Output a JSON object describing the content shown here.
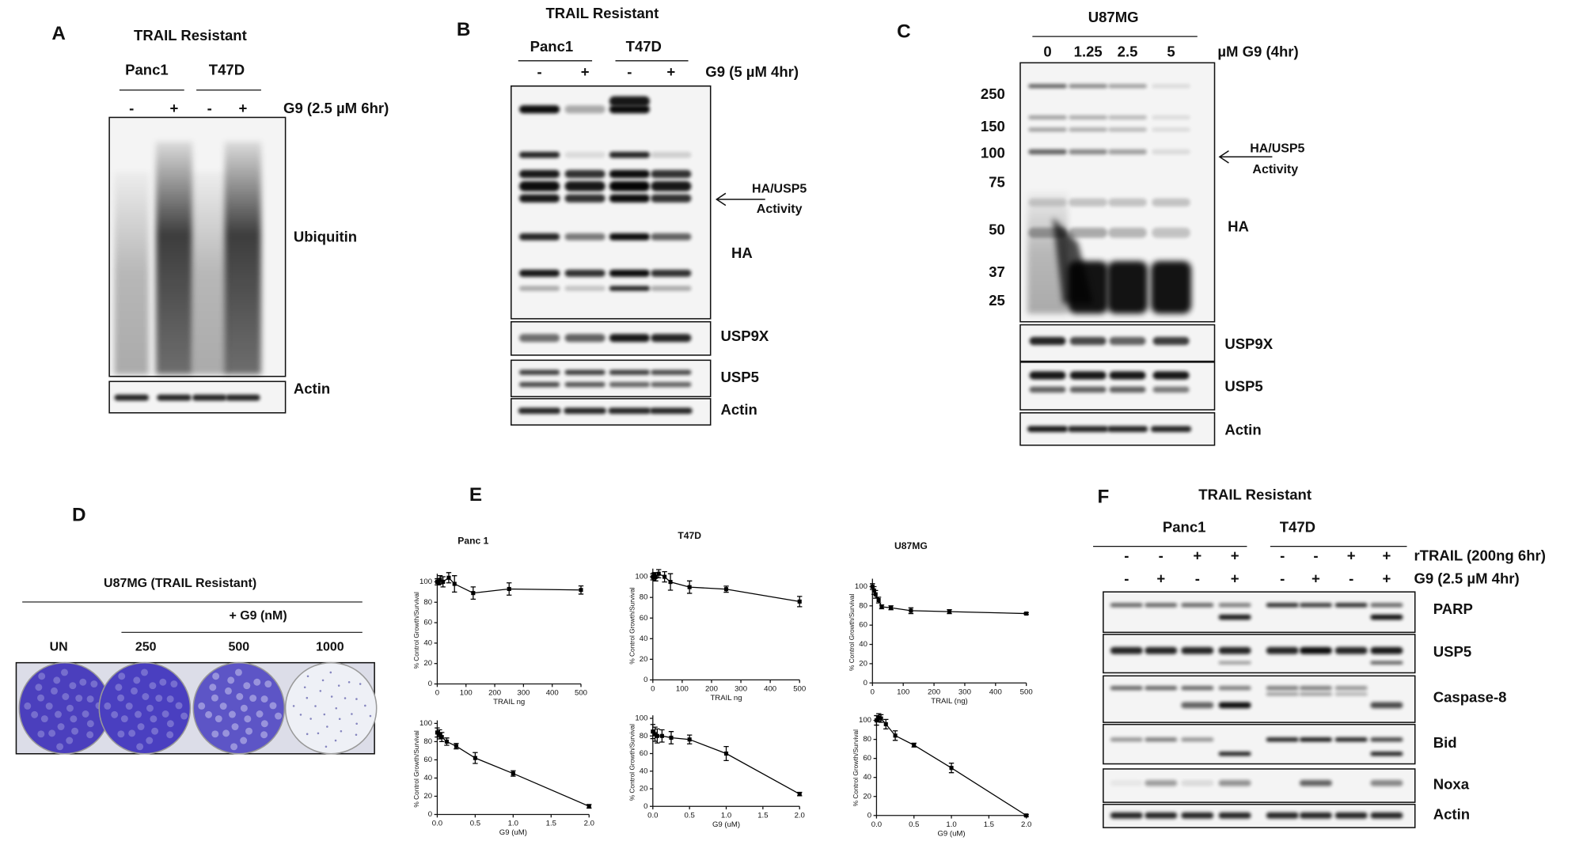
{
  "panels": {
    "A": {
      "label": "A",
      "header": "TRAIL Resistant",
      "groups": [
        "Panc1",
        "T47D"
      ],
      "lanes": [
        "-",
        "+",
        "-",
        "+"
      ],
      "treatment": "G9 (2.5 µM 6hr)",
      "blots": [
        "Ubiquitin",
        "Actin"
      ]
    },
    "B": {
      "label": "B",
      "header": "TRAIL Resistant",
      "groups": [
        "Panc1",
        "T47D"
      ],
      "lanes": [
        "-",
        "+",
        "-",
        "+"
      ],
      "treatment": "G9 (5 µM 4hr)",
      "annotation": [
        "HA/USP5",
        "Activity"
      ],
      "blots": [
        "HA",
        "USP9X",
        "USP5",
        "Actin"
      ]
    },
    "C": {
      "label": "C",
      "header": "U87MG",
      "lanes": [
        "0",
        "1.25",
        "2.5",
        "5"
      ],
      "treatment": "µM G9 (4hr)",
      "markers": [
        "250",
        "150",
        "100",
        "75",
        "50",
        "37",
        "25"
      ],
      "annotation": [
        "HA/USP5",
        "Activity"
      ],
      "blots": [
        "HA",
        "USP9X",
        "USP5",
        "Actin"
      ]
    },
    "D": {
      "label": "D",
      "title": "U87MG (TRAIL Resistant)",
      "subtitle": "+ G9 (nM)",
      "wells": [
        "UN",
        "250",
        "500",
        "1000"
      ]
    },
    "E": {
      "label": "E"
    },
    "F": {
      "label": "F",
      "header": "TRAIL Resistant",
      "groups": [
        "Panc1",
        "T47D"
      ],
      "rows": [
        {
          "name": "rTRAIL (200ng 6hr)",
          "signs": [
            "-",
            "-",
            "+",
            "+",
            "-",
            "-",
            "+",
            "+"
          ]
        },
        {
          "name": "G9 (2.5 µM 4hr)",
          "signs": [
            "-",
            "+",
            "-",
            "+",
            "-",
            "+",
            "-",
            "+"
          ]
        }
      ],
      "blots": [
        "PARP",
        "USP5",
        "Caspase-8",
        "Bid",
        "Noxa",
        "Actin"
      ]
    }
  },
  "chart_data": [
    {
      "type": "line",
      "title": "Panc 1",
      "x_label": "TRAIL ng",
      "y_label": "% Control Growth/Survival",
      "color": "#000000",
      "x": [
        0,
        5,
        10,
        20,
        40,
        60,
        125,
        250,
        500
      ],
      "values": [
        100,
        100,
        102,
        100,
        104,
        98,
        89,
        93,
        92
      ],
      "errors": [
        3,
        3,
        4,
        5,
        5,
        8,
        6,
        6,
        4
      ],
      "xlim": [
        0,
        500
      ],
      "xticks": [
        0,
        100,
        200,
        300,
        400,
        500
      ],
      "ylim": [
        0,
        105
      ],
      "yticks": [
        0,
        20,
        40,
        60,
        80,
        100
      ]
    },
    {
      "type": "line",
      "title": "T47D",
      "x_label": "TRAIL ng",
      "y_label": "% Control Growth/Survival",
      "color": "#000000",
      "x": [
        0,
        5,
        10,
        20,
        40,
        60,
        125,
        250,
        500
      ],
      "values": [
        100,
        101,
        100,
        103,
        100,
        95,
        90,
        88,
        76
      ],
      "errors": [
        3,
        3,
        4,
        4,
        5,
        8,
        6,
        3,
        5
      ],
      "xlim": [
        0,
        500
      ],
      "xticks": [
        0,
        100,
        200,
        300,
        400,
        500
      ],
      "ylim": [
        0,
        105
      ],
      "yticks": [
        0,
        20,
        40,
        60,
        80,
        100
      ]
    },
    {
      "type": "line",
      "title": "U87MG",
      "x_label": "TRAIL (ng)",
      "y_label": "% Control Growth/Survival",
      "color": "#000000",
      "x": [
        0,
        5,
        10,
        20,
        30,
        60,
        125,
        250,
        500
      ],
      "values": [
        100,
        96,
        92,
        86,
        79,
        78,
        75,
        74,
        72
      ],
      "errors": [
        3,
        4,
        4,
        3,
        2,
        2,
        3,
        2,
        1
      ],
      "xlim": [
        0,
        500
      ],
      "xticks": [
        0,
        100,
        200,
        300,
        400,
        500
      ],
      "ylim": [
        0,
        105
      ],
      "yticks": [
        0,
        20,
        40,
        60,
        80,
        100
      ]
    },
    {
      "type": "line",
      "x_label": "G9 (uM)",
      "y_label": "% Control Growth/Survival",
      "color": "#000000",
      "x": [
        0,
        0.03,
        0.06,
        0.125,
        0.25,
        0.5,
        1,
        2
      ],
      "values": [
        90,
        88,
        85,
        80,
        75,
        62,
        45,
        9
      ],
      "errors": [
        5,
        5,
        5,
        4,
        3,
        6,
        3,
        2
      ],
      "xlim": [
        0,
        2
      ],
      "xticks": [
        {
          "value": 0,
          "label": "0.0"
        },
        0.5,
        {
          "value": 1,
          "label": "1.0"
        },
        1.5,
        {
          "value": 2,
          "label": "2.0"
        }
      ],
      "ylim": [
        0,
        100
      ],
      "yticks": [
        0,
        20,
        40,
        60,
        80,
        100
      ]
    },
    {
      "type": "line",
      "x_label": "G9 (uM)",
      "y_label": "% Control Growth/Survival",
      "color": "#000000",
      "x": [
        0,
        0.03,
        0.06,
        0.125,
        0.25,
        0.5,
        1,
        2
      ],
      "values": [
        85,
        82,
        80,
        80,
        78,
        76,
        60,
        14
      ],
      "errors": [
        8,
        8,
        8,
        7,
        7,
        5,
        8,
        2
      ],
      "xlim": [
        0,
        2
      ],
      "xticks": [
        {
          "value": 0,
          "label": "0.0"
        },
        0.5,
        {
          "value": 1,
          "label": "1.0"
        },
        1.5,
        {
          "value": 2,
          "label": "2.0"
        }
      ],
      "ylim": [
        0,
        100
      ],
      "yticks": [
        0,
        20,
        40,
        60,
        80,
        100
      ]
    },
    {
      "type": "line",
      "x_label": "G9 (uM)",
      "y_label": "% Control Growth/Survival",
      "color": "#000000",
      "x": [
        0,
        0.03,
        0.06,
        0.125,
        0.25,
        0.5,
        1,
        2
      ],
      "values": [
        100,
        103,
        102,
        96,
        84,
        74,
        50,
        0
      ],
      "errors": [
        5,
        4,
        4,
        5,
        5,
        2,
        5,
        1
      ],
      "xlim": [
        0,
        2
      ],
      "xticks": [
        {
          "value": 0,
          "label": "0.0"
        },
        0.5,
        {
          "value": 1,
          "label": "1.0"
        },
        1.5,
        {
          "value": 2,
          "label": "2.0"
        }
      ],
      "ylim": [
        0,
        100
      ],
      "yticks": [
        0,
        20,
        40,
        60,
        80,
        100
      ]
    }
  ]
}
